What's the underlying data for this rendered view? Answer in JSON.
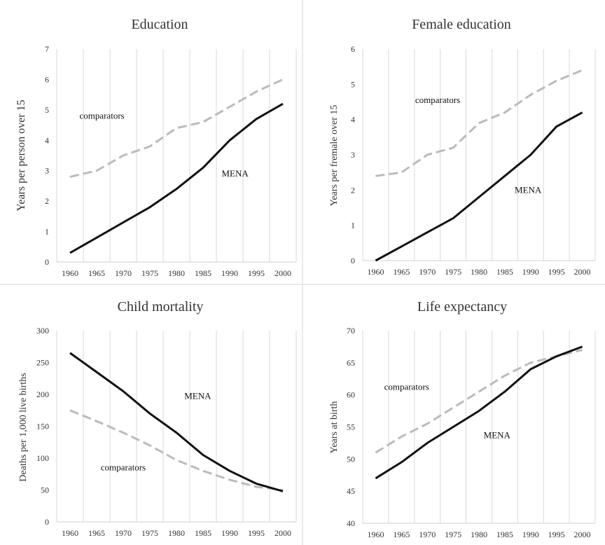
{
  "chart_data": [
    {
      "type": "line",
      "title": "Education",
      "xlabel": "",
      "ylabel": "Years per person over 15",
      "x": [
        1960,
        1965,
        1970,
        1975,
        1980,
        1985,
        1990,
        1995,
        2000
      ],
      "ylim": [
        0,
        7
      ],
      "yticks": [
        0,
        1,
        2,
        3,
        4,
        5,
        6,
        7
      ],
      "grid": "vertical",
      "series": [
        {
          "name": "MENA",
          "style": "solid",
          "color": "#111111",
          "values": [
            0.3,
            0.8,
            1.3,
            1.8,
            2.4,
            3.1,
            4.0,
            4.7,
            5.2
          ]
        },
        {
          "name": "comparators",
          "style": "dashed",
          "color": "#bbbbbb",
          "values": [
            2.8,
            3.0,
            3.5,
            3.8,
            4.4,
            4.6,
            5.1,
            5.6,
            6.0
          ]
        }
      ],
      "annotations": [
        {
          "text": "comparators",
          "x": 1966,
          "y": 4.8
        },
        {
          "text": "MENA",
          "x": 1991,
          "y": 2.9
        }
      ]
    },
    {
      "type": "line",
      "title": "Female education",
      "xlabel": "",
      "ylabel": "Years per fremale over 15",
      "x": [
        1960,
        1965,
        1970,
        1975,
        1980,
        1985,
        1990,
        1995,
        2000
      ],
      "ylim": [
        0,
        6
      ],
      "yticks": [
        0,
        1,
        2,
        3,
        4,
        5,
        6
      ],
      "grid": "vertical",
      "series": [
        {
          "name": "MENA",
          "style": "solid",
          "color": "#111111",
          "values": [
            0.0,
            0.4,
            0.8,
            1.2,
            1.8,
            2.4,
            3.0,
            3.8,
            4.2
          ]
        },
        {
          "name": "comparators",
          "style": "dashed",
          "color": "#bbbbbb",
          "values": [
            2.4,
            2.5,
            3.0,
            3.2,
            3.9,
            4.2,
            4.7,
            5.1,
            5.4
          ]
        }
      ],
      "annotations": [
        {
          "text": "comparators",
          "x": 1972,
          "y": 4.55
        },
        {
          "text": "MENA",
          "x": 1989.5,
          "y": 2.0
        }
      ]
    },
    {
      "type": "line",
      "title": "Child mortality",
      "xlabel": "",
      "ylabel": "Deaths per 1,000 live births",
      "x": [
        1960,
        1965,
        1970,
        1975,
        1980,
        1985,
        1990,
        1995,
        2000
      ],
      "ylim": [
        0,
        300
      ],
      "yticks": [
        0,
        50,
        100,
        150,
        200,
        250,
        300
      ],
      "grid": "vertical",
      "series": [
        {
          "name": "MENA",
          "style": "solid",
          "color": "#111111",
          "values": [
            265,
            235,
            205,
            170,
            140,
            105,
            80,
            60,
            48
          ]
        },
        {
          "name": "comparators",
          "style": "dashed",
          "color": "#bbbbbb",
          "values": [
            175,
            158,
            140,
            120,
            97,
            80,
            66,
            55,
            50
          ]
        }
      ],
      "annotations": [
        {
          "text": "comparators",
          "x": 1970,
          "y": 85
        },
        {
          "text": "MENA",
          "x": 1984,
          "y": 197
        }
      ]
    },
    {
      "type": "line",
      "title": "Life expectancy",
      "xlabel": "",
      "ylabel": "Years at birth",
      "x": [
        1960,
        1965,
        1970,
        1975,
        1980,
        1985,
        1990,
        1995,
        2000
      ],
      "ylim": [
        40,
        70
      ],
      "yticks": [
        40,
        45,
        50,
        55,
        60,
        65,
        70
      ],
      "grid": "vertical",
      "series": [
        {
          "name": "MENA",
          "style": "solid",
          "color": "#111111",
          "values": [
            47.0,
            49.5,
            52.5,
            55.0,
            57.5,
            60.5,
            64.0,
            66.0,
            67.5
          ]
        },
        {
          "name": "comparators",
          "style": "dashed",
          "color": "#bbbbbb",
          "values": [
            51.0,
            53.5,
            55.5,
            58.0,
            60.5,
            63.0,
            65.0,
            66.0,
            67.0
          ]
        }
      ],
      "annotations": [
        {
          "text": "comparators",
          "x": 1966,
          "y": 61.2
        },
        {
          "text": "MENA",
          "x": 1983.5,
          "y": 53.7
        }
      ]
    }
  ]
}
